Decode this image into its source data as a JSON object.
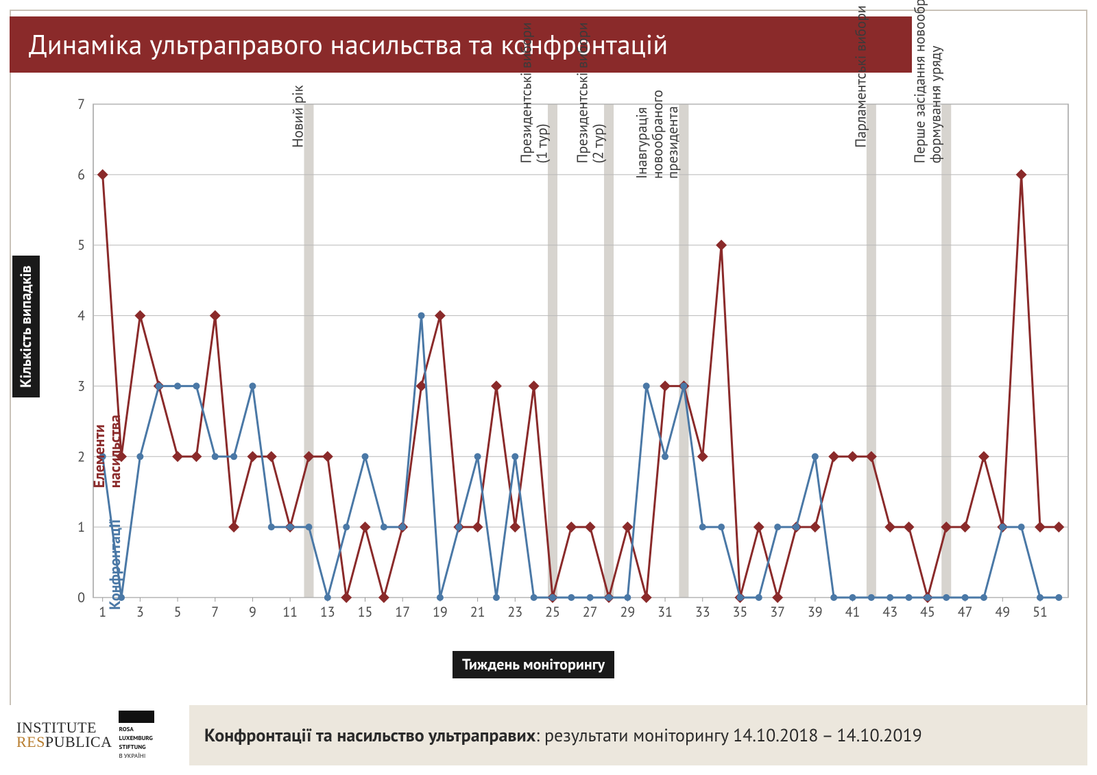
{
  "title": "Динаміка ультраправого насильства та конфронтацій",
  "yaxis_label": "Кількість випадків",
  "xaxis_label": "Тиждень моніторингу",
  "footer": {
    "bold": "Конфронтації та насильство ультраправих",
    "rest": ": результати моніторингу 14.10.2018 – 14.10.2019",
    "logo_institute_line1": "INSTITUTE",
    "logo_institute_res": "RES",
    "logo_institute_publica": "PUBLICA",
    "logo_rls_1": "ROSA",
    "logo_rls_2": "LUXEMBURG",
    "logo_rls_3": "STIFTUNG",
    "logo_rls_4": "В УКРАЇНІ"
  },
  "chart": {
    "type": "line",
    "plot_bg": "#ffffff",
    "border_color": "#9a9a9a",
    "grid_color": "#b8b8b8",
    "grid_width": 1,
    "event_band_color": "#d7d4cf",
    "ylim": [
      0,
      7
    ],
    "yticks": [
      0,
      1,
      2,
      3,
      4,
      5,
      6,
      7
    ],
    "xlim": [
      1,
      52
    ],
    "xticks": [
      1,
      3,
      5,
      7,
      9,
      11,
      13,
      15,
      17,
      19,
      21,
      23,
      25,
      27,
      29,
      31,
      33,
      35,
      37,
      39,
      41,
      43,
      45,
      47,
      49,
      51
    ],
    "tick_fontsize": 20,
    "tick_color": "#4a4a4a",
    "series": [
      {
        "name": "Елементи насильства",
        "name_line1": "Елементи",
        "name_line2": "насильства",
        "color": "#8a2a2a",
        "marker": "diamond",
        "marker_size": 12,
        "line_width": 3,
        "values": [
          6,
          2,
          4,
          3,
          2,
          2,
          4,
          1,
          2,
          2,
          1,
          2,
          2,
          0,
          1,
          0,
          1,
          3,
          4,
          1,
          1,
          3,
          1,
          3,
          0,
          1,
          1,
          0,
          1,
          0,
          3,
          3,
          2,
          5,
          0,
          1,
          0,
          1,
          1,
          2,
          2,
          2,
          1,
          1,
          0,
          1,
          1,
          2,
          1,
          6,
          1,
          1
        ]
      },
      {
        "name": "Конфронтації",
        "color": "#4a78a6",
        "marker": "circle",
        "marker_size": 10,
        "line_width": 3,
        "values": [
          2,
          0,
          2,
          3,
          3,
          3,
          2,
          2,
          3,
          1,
          1,
          1,
          0,
          1,
          2,
          1,
          1,
          4,
          0,
          1,
          2,
          0,
          2,
          0,
          0,
          0,
          0,
          0,
          0,
          3,
          2,
          3,
          1,
          1,
          0,
          0,
          1,
          1,
          2,
          0,
          0,
          0,
          0,
          0,
          0,
          0,
          0,
          0,
          1,
          1,
          0,
          0
        ]
      }
    ],
    "events": [
      {
        "x": 12,
        "label": "Новий рік"
      },
      {
        "x": 25,
        "label_line1": "Президентські вибори",
        "label_line2": "(1 тур)"
      },
      {
        "x": 28,
        "label_line1": "Президентські вибори",
        "label_line2": "(2 тур)"
      },
      {
        "x": 32,
        "label_line1": "Інавгурація",
        "label_line2": "новообраного",
        "label_line3": "президента"
      },
      {
        "x": 42,
        "label": "Парламентські вибори"
      },
      {
        "x": 46,
        "label_line1": "Перше засідання новообраної ВРУ/",
        "label_line2": "формування уряду"
      }
    ]
  }
}
